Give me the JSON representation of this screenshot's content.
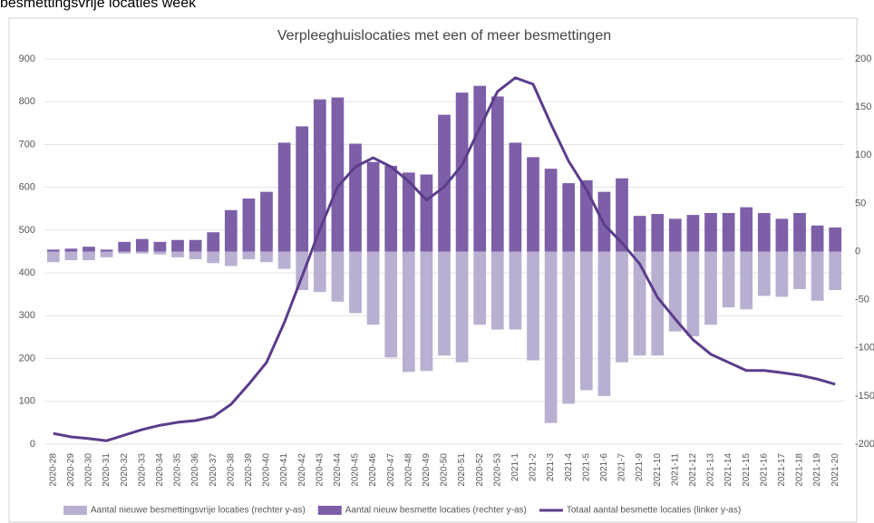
{
  "heading": "besmettingsvrije locaties week",
  "chart_data": {
    "type": "bar",
    "title": "Verpleeghuislocaties met een of meer besmettingen",
    "categories": [
      "2020-28",
      "2020-29",
      "2020-30",
      "2020-31",
      "2020-32",
      "2020-33",
      "2020-34",
      "2020-35",
      "2020-36",
      "2020-37",
      "2020-38",
      "2020-39",
      "2020-40",
      "2020-41",
      "2020-42",
      "2020-43",
      "2020-44",
      "2020-45",
      "2020-46",
      "2020-47",
      "2020-48",
      "2020-49",
      "2020-50",
      "2020-51",
      "2020-52",
      "2020-53",
      "2021-1",
      "2021-2",
      "2021-3",
      "2021-4",
      "2021-5",
      "2021-6",
      "2021-7",
      "2021-9",
      "2021-10",
      "2021-11",
      "2021-12",
      "2021-13",
      "2021-14",
      "2021-15",
      "2021-16",
      "2021-17",
      "2021-18",
      "2021-19",
      "2021-20"
    ],
    "series": [
      {
        "name": "Aantal nieuwe besmettingsvrije locaties (rechter y-as)",
        "type": "bar",
        "axis": "y2",
        "color": "#b9afd1",
        "values": [
          -11,
          -9,
          -9,
          -6,
          -2,
          -2,
          -3,
          -6,
          -8,
          -12,
          -15,
          -8,
          -11,
          -18,
          -40,
          -42,
          -52,
          -64,
          -76,
          -110,
          -125,
          -124,
          -108,
          -115,
          -76,
          -81,
          -81,
          -113,
          -178,
          -158,
          -144,
          -150,
          -115,
          -108,
          -108,
          -83,
          -88,
          -76,
          -58,
          -60,
          -46,
          -47,
          -39,
          -51,
          -40
        ]
      },
      {
        "name": "Aantal nieuw besmette locaties (rechter y-as)",
        "type": "bar",
        "axis": "y2",
        "color": "#7d5fa8",
        "values": [
          2,
          3,
          5,
          2,
          10,
          13,
          10,
          12,
          12,
          20,
          43,
          55,
          62,
          113,
          130,
          158,
          160,
          112,
          93,
          89,
          82,
          80,
          142,
          165,
          172,
          161,
          113,
          98,
          86,
          71,
          74,
          62,
          76,
          37,
          39,
          34,
          38,
          40,
          40,
          46,
          40,
          34,
          40,
          27,
          25
        ]
      },
      {
        "name": "Totaal aantal besmette locaties (linker y-as)",
        "type": "line",
        "axis": "y",
        "color": "#5b3d8a",
        "values": [
          25,
          17,
          13,
          8,
          21,
          34,
          44,
          51,
          55,
          64,
          93,
          140,
          191,
          284,
          392,
          502,
          601,
          648,
          669,
          648,
          614,
          570,
          601,
          652,
          739,
          824,
          856,
          841,
          748,
          661,
          595,
          513,
          470,
          421,
          343,
          292,
          244,
          210,
          191,
          172,
          172,
          167,
          161,
          152,
          140
        ]
      }
    ],
    "ylim": [
      0,
      900
    ],
    "yticks": [
      0,
      100,
      200,
      300,
      400,
      500,
      600,
      700,
      800,
      900
    ],
    "y2lim": [
      -200,
      200
    ],
    "y2ticks": [
      200,
      150,
      100,
      50,
      0,
      -50,
      -100,
      -150,
      -200
    ],
    "grid": true,
    "legend": "bottom"
  }
}
